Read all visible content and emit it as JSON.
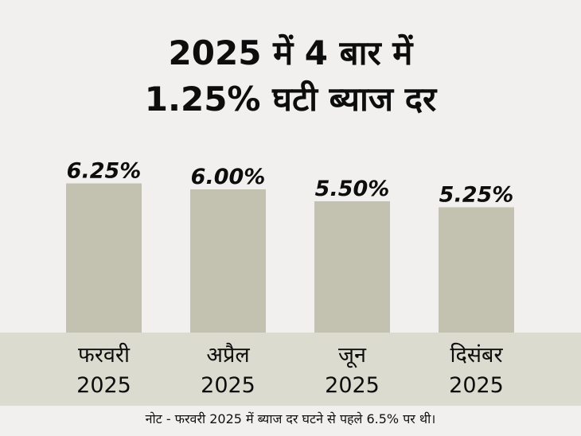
{
  "title": {
    "line1": "2025 में 4 बार में",
    "line2": "1.25% घटी ब्याज दर"
  },
  "colors": {
    "background": "#f1f0ee",
    "bar": "#c3c2b1",
    "axis_band": "#dcdbd0",
    "text": "#0d0d0d"
  },
  "chart_data": {
    "type": "bar",
    "categories": [
      "फरवरी 2025",
      "अप्रैल 2025",
      "जून 2025",
      "दिसंबर 2025"
    ],
    "category_lines": [
      [
        "फरवरी",
        "2025"
      ],
      [
        "अप्रैल",
        "2025"
      ],
      [
        "जून",
        "2025"
      ],
      [
        "दिसंबर",
        "2025"
      ]
    ],
    "values": [
      6.25,
      6.0,
      5.5,
      5.25
    ],
    "data_labels": [
      "6.25%",
      "6.00%",
      "5.50%",
      "5.25%"
    ],
    "title": "2025 में 4 बार में 1.25% घटी ब्याज दर",
    "xlabel": "",
    "ylabel": "",
    "ylim": [
      0,
      7.8
    ],
    "grid": false,
    "legend": "none"
  },
  "note": "नोट - फरवरी 2025 में ब्याज दर घटने से पहले 6.5% पर थी।"
}
